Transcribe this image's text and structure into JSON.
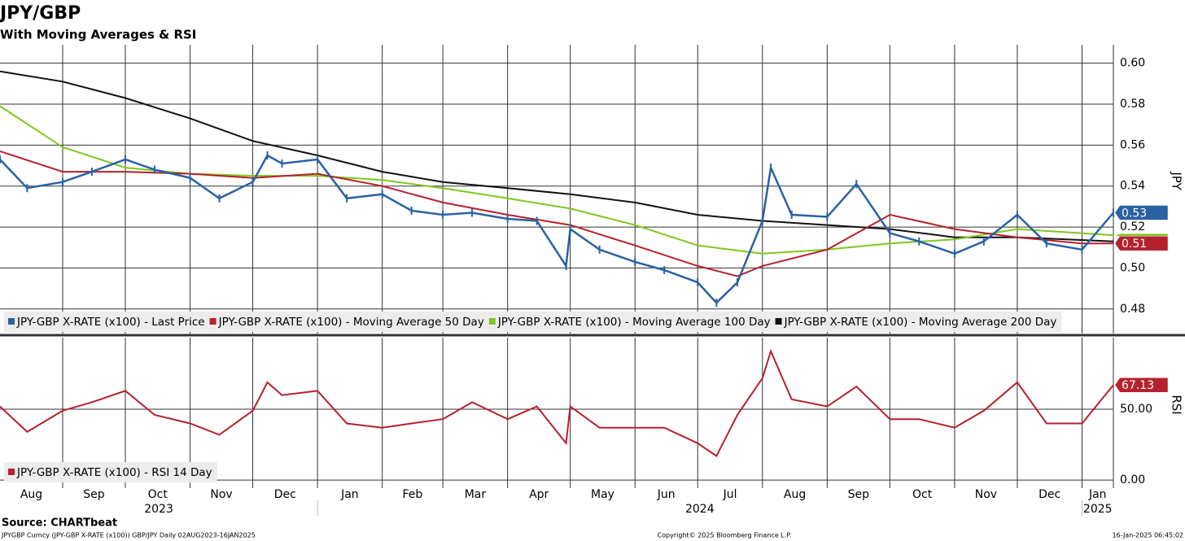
{
  "header": {
    "title": "JPY/GBP",
    "subtitle": "With Moving Averages & RSI"
  },
  "source": "Source: CHARTbeat",
  "footer": {
    "left": "JPYGBP Curncy (JPY-GBP X-RATE (x100)) GBP/JPY  Daily 02AUG2023-16JAN2025",
    "center": "Copyright© 2025 Bloomberg Finance L.P.",
    "right": "16-Jan-2025 06:45:02"
  },
  "chart_data": [
    {
      "type": "line",
      "y_axis_label": "JPY",
      "xlim": [
        "2023-08-02",
        "2025-01-16"
      ],
      "ylim": [
        0.468,
        0.609
      ],
      "yticks": [
        0.48,
        {
          "value": 0.5,
          "label": "0.50"
        },
        0.52,
        0.54,
        0.56,
        0.58,
        {
          "value": 0.6,
          "label": "0.60"
        }
      ],
      "grid": true,
      "series": [
        {
          "name": "JPY-GBP X-RATE (x100) - Last Price",
          "color": "#2a62a3",
          "last_label": "0.53",
          "x": [
            "2023-08-02",
            "2023-08-15",
            "2023-09-01",
            "2023-09-15",
            "2023-10-01",
            "2023-10-15",
            "2023-11-01",
            "2023-11-15",
            "2023-12-01",
            "2023-12-08",
            "2023-12-15",
            "2024-01-01",
            "2024-01-15",
            "2024-02-01",
            "2024-02-15",
            "2024-03-01",
            "2024-03-15",
            "2024-04-01",
            "2024-04-15",
            "2024-04-29",
            "2024-05-01",
            "2024-05-15",
            "2024-06-01",
            "2024-06-15",
            "2024-07-01",
            "2024-07-10",
            "2024-07-20",
            "2024-08-01",
            "2024-08-05",
            "2024-08-15",
            "2024-09-01",
            "2024-09-15",
            "2024-10-01",
            "2024-10-15",
            "2024-11-01",
            "2024-11-15",
            "2024-12-01",
            "2024-12-15",
            "2025-01-01",
            "2025-01-16"
          ],
          "values": [
            0.553,
            0.539,
            0.542,
            0.547,
            0.553,
            0.548,
            0.544,
            0.534,
            0.542,
            0.555,
            0.551,
            0.553,
            0.534,
            0.536,
            0.528,
            0.526,
            0.527,
            0.524,
            0.523,
            0.501,
            0.519,
            0.509,
            0.503,
            0.499,
            0.493,
            0.483,
            0.493,
            0.523,
            0.549,
            0.526,
            0.525,
            0.541,
            0.517,
            0.513,
            0.507,
            0.513,
            0.526,
            0.512,
            0.509,
            0.527
          ]
        },
        {
          "name": "JPY-GBP X-RATE (x100) - Moving Average 50 Day",
          "color": "#b5212d",
          "last_label": "0.51",
          "x": [
            "2023-08-02",
            "2023-09-01",
            "2023-10-01",
            "2023-11-01",
            "2023-12-01",
            "2024-01-01",
            "2024-02-01",
            "2024-03-01",
            "2024-04-01",
            "2024-05-01",
            "2024-06-01",
            "2024-07-01",
            "2024-07-20",
            "2024-08-01",
            "2024-09-01",
            "2024-10-01",
            "2024-11-01",
            "2024-12-01",
            "2025-01-01",
            "2025-01-16"
          ],
          "values": [
            0.557,
            0.547,
            0.547,
            0.546,
            0.544,
            0.546,
            0.54,
            0.532,
            0.526,
            0.521,
            0.511,
            0.501,
            0.496,
            0.501,
            0.509,
            0.526,
            0.519,
            0.515,
            0.512,
            0.512
          ]
        },
        {
          "name": "JPY-GBP X-RATE (x100) - Moving Average 100 Day",
          "color": "#7dc81e",
          "x": [
            "2023-08-02",
            "2023-09-01",
            "2023-10-01",
            "2023-11-01",
            "2023-12-01",
            "2024-01-01",
            "2024-02-01",
            "2024-03-01",
            "2024-04-01",
            "2024-05-01",
            "2024-06-01",
            "2024-07-01",
            "2024-08-01",
            "2024-09-01",
            "2024-10-01",
            "2024-11-01",
            "2024-12-01",
            "2025-01-16"
          ],
          "values": [
            0.579,
            0.559,
            0.549,
            0.546,
            0.545,
            0.545,
            0.543,
            0.539,
            0.534,
            0.529,
            0.521,
            0.511,
            0.507,
            0.509,
            0.512,
            0.514,
            0.519,
            0.516
          ]
        },
        {
          "name": "JPY-GBP X-RATE (x100) - Moving Average 200 Day",
          "color": "#111111",
          "x": [
            "2023-08-02",
            "2023-09-01",
            "2023-10-01",
            "2023-11-01",
            "2023-12-01",
            "2024-01-01",
            "2024-02-01",
            "2024-03-01",
            "2024-04-01",
            "2024-05-01",
            "2024-06-01",
            "2024-07-01",
            "2024-08-01",
            "2024-09-01",
            "2024-10-01",
            "2024-11-01",
            "2024-12-01",
            "2025-01-16"
          ],
          "values": [
            0.596,
            0.591,
            0.583,
            0.573,
            0.562,
            0.555,
            0.547,
            0.542,
            0.539,
            0.536,
            0.532,
            0.526,
            0.523,
            0.521,
            0.519,
            0.515,
            0.515,
            0.513
          ]
        }
      ]
    },
    {
      "type": "line",
      "y_axis_label": "RSI",
      "xlim": [
        "2023-08-02",
        "2025-01-16"
      ],
      "ylim": [
        -5.7,
        100.6
      ],
      "yticks": [
        {
          "value": 0,
          "label": "0.00"
        },
        {
          "value": 50,
          "label": "50.00"
        }
      ],
      "xticks": [
        {
          "value": "2023-08-01",
          "label": "Aug"
        },
        {
          "value": "2023-09-01",
          "label": "Sep"
        },
        {
          "value": "2023-10-01",
          "label": "Oct"
        },
        {
          "value": "2023-11-01",
          "label": "Nov"
        },
        {
          "value": "2023-12-01",
          "label": "Dec"
        },
        {
          "value": "2024-01-01",
          "label": "Jan"
        },
        {
          "value": "2024-02-01",
          "label": "Feb"
        },
        {
          "value": "2024-03-01",
          "label": "Mar"
        },
        {
          "value": "2024-04-01",
          "label": "Apr"
        },
        {
          "value": "2024-05-01",
          "label": "May"
        },
        {
          "value": "2024-06-01",
          "label": "Jun"
        },
        {
          "value": "2024-07-01",
          "label": "Jul"
        },
        {
          "value": "2024-08-01",
          "label": "Aug"
        },
        {
          "value": "2024-09-01",
          "label": "Sep"
        },
        {
          "value": "2024-10-01",
          "label": "Oct"
        },
        {
          "value": "2024-11-01",
          "label": "Nov"
        },
        {
          "value": "2024-12-01",
          "label": "Dec"
        },
        {
          "value": "2025-01-01",
          "label": "Jan"
        }
      ],
      "years": [
        "2023",
        "2024",
        "2025"
      ],
      "grid": true,
      "series": [
        {
          "name": "JPY-GBP X-RATE (x100) - RSI 14 Day",
          "color": "#b5212d",
          "last_label": "67.13",
          "x": [
            "2023-08-02",
            "2023-08-15",
            "2023-09-01",
            "2023-09-15",
            "2023-10-01",
            "2023-10-15",
            "2023-11-01",
            "2023-11-15",
            "2023-12-01",
            "2023-12-08",
            "2023-12-15",
            "2024-01-01",
            "2024-01-15",
            "2024-02-01",
            "2024-02-15",
            "2024-03-01",
            "2024-03-15",
            "2024-04-01",
            "2024-04-15",
            "2024-04-29",
            "2024-05-01",
            "2024-05-15",
            "2024-06-01",
            "2024-06-15",
            "2024-07-01",
            "2024-07-10",
            "2024-07-20",
            "2024-08-01",
            "2024-08-05",
            "2024-08-15",
            "2024-09-01",
            "2024-09-15",
            "2024-10-01",
            "2024-10-15",
            "2024-11-01",
            "2024-11-15",
            "2024-12-01",
            "2024-12-15",
            "2025-01-01",
            "2025-01-16"
          ],
          "values": [
            52,
            34,
            49,
            55,
            63,
            46,
            40,
            32,
            49,
            69,
            60,
            63,
            40,
            37,
            40,
            43,
            55,
            43,
            52,
            26,
            52,
            37,
            37,
            37,
            26,
            17,
            46,
            72,
            91,
            57,
            52,
            66,
            43,
            43,
            37,
            49,
            69,
            40,
            40,
            67.13
          ]
        }
      ]
    }
  ]
}
